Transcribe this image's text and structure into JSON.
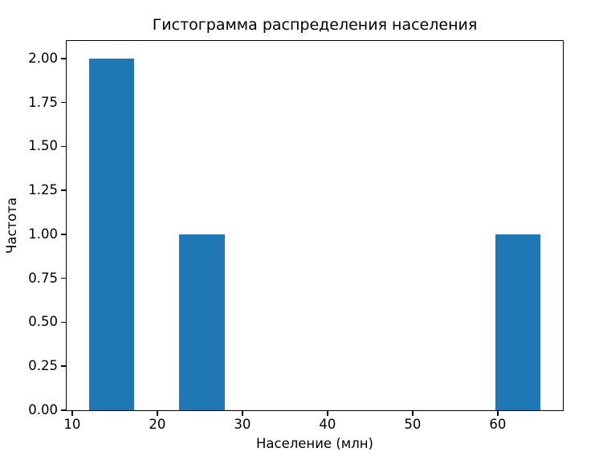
{
  "figure": {
    "background": "#ffffff",
    "text_color": "#000000",
    "spine_color": "#000000"
  },
  "chart_data": {
    "type": "histogram",
    "title": "Гистограмма распределения населения",
    "xlabel": "Население (млн)",
    "ylabel": "Частота",
    "bar_color": "#1f77b4",
    "grid": false,
    "legend": null,
    "bin_edges": [
      12.0,
      17.3,
      22.6,
      27.9,
      33.2,
      38.5,
      43.8,
      49.1,
      54.4,
      59.7,
      65.0
    ],
    "counts": [
      2,
      0,
      1,
      0,
      0,
      0,
      0,
      0,
      0,
      1
    ],
    "xlim": [
      9.35,
      67.65
    ],
    "ylim": [
      0,
      2.1
    ],
    "xticks": [
      {
        "value": 10,
        "label": "10"
      },
      {
        "value": 20,
        "label": "20"
      },
      {
        "value": 30,
        "label": "30"
      },
      {
        "value": 40,
        "label": "40"
      },
      {
        "value": 50,
        "label": "50"
      },
      {
        "value": 60,
        "label": "60"
      }
    ],
    "yticks": [
      {
        "value": 0.0,
        "label": "0.00"
      },
      {
        "value": 0.25,
        "label": "0.25"
      },
      {
        "value": 0.5,
        "label": "0.50"
      },
      {
        "value": 0.75,
        "label": "0.75"
      },
      {
        "value": 1.0,
        "label": "1.00"
      },
      {
        "value": 1.25,
        "label": "1.25"
      },
      {
        "value": 1.5,
        "label": "1.50"
      },
      {
        "value": 1.75,
        "label": "1.75"
      },
      {
        "value": 2.0,
        "label": "2.00"
      }
    ]
  }
}
